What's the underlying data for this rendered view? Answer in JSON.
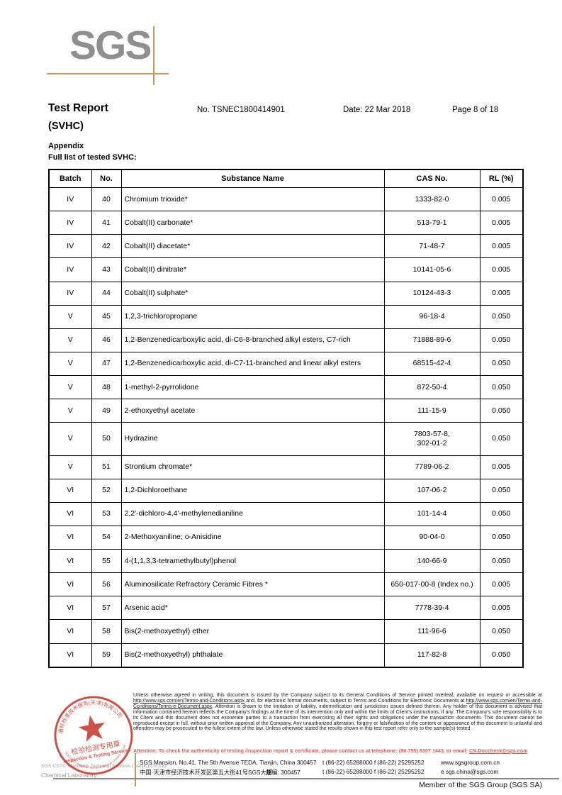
{
  "logo": {
    "text": "SGS"
  },
  "header": {
    "title": "Test Report",
    "subtitle": "(SVHC)",
    "report_no": "No. TSNEC1800414901",
    "date": "Date: 22 Mar 2018",
    "page": "Page 8 of 18",
    "appendix": "Appendix",
    "full_list": "Full list of tested SVHC:"
  },
  "table": {
    "headers": [
      "Batch",
      "No.",
      "Substance Name",
      "CAS No.",
      "RL (%)"
    ],
    "rows": [
      {
        "batch": "IV",
        "no": "40",
        "name": "Chromium trioxide*",
        "cas": "1333-82-0",
        "rl": "0.005"
      },
      {
        "batch": "IV",
        "no": "41",
        "name": "Cobalt(II) carbonate*",
        "cas": "513-79-1",
        "rl": "0.005"
      },
      {
        "batch": "IV",
        "no": "42",
        "name": "Cobalt(II) diacetate*",
        "cas": "71-48-7",
        "rl": "0.005"
      },
      {
        "batch": "IV",
        "no": "43",
        "name": "Cobalt(II) dinitrate*",
        "cas": "10141-05-6",
        "rl": "0.005"
      },
      {
        "batch": "IV",
        "no": "44",
        "name": "Cobalt(II) sulphate*",
        "cas": "10124-43-3",
        "rl": "0.005"
      },
      {
        "batch": "V",
        "no": "45",
        "name": "1,2,3-trichloropropane",
        "cas": "96-18-4",
        "rl": "0.050"
      },
      {
        "batch": "V",
        "no": "46",
        "name": "1,2-Benzenedicarboxylic acid, di-C6-8-branched alkyl esters, C7-rich",
        "cas": "71888-89-6",
        "rl": "0.050"
      },
      {
        "batch": "V",
        "no": "47",
        "name": "1,2-Benzenedicarboxylic acid, di-C7-11-branched and linear alkyl esters",
        "cas": "68515-42-4",
        "rl": "0.050"
      },
      {
        "batch": "V",
        "no": "48",
        "name": "1-methyl-2-pyrrolidone",
        "cas": "872-50-4",
        "rl": "0.050"
      },
      {
        "batch": "V",
        "no": "49",
        "name": "2-ethoxyethyl acetate",
        "cas": "111-15-9",
        "rl": "0.050"
      },
      {
        "batch": "V",
        "no": "50",
        "name": "Hydrazine",
        "cas": "7803-57-8,\n302-01-2",
        "rl": "0.050"
      },
      {
        "batch": "V",
        "no": "51",
        "name": "Strontium chromate*",
        "cas": "7789-06-2",
        "rl": "0.005"
      },
      {
        "batch": "VI",
        "no": "52",
        "name": "1,2-Dichloroethane",
        "cas": "107-06-2",
        "rl": "0.050"
      },
      {
        "batch": "VI",
        "no": "53",
        "name": "2,2'-dichloro-4,4'-methylenedianiline",
        "cas": "101-14-4",
        "rl": "0.050"
      },
      {
        "batch": "VI",
        "no": "54",
        "name": "2-Methoxyaniline; o-Anisidine",
        "cas": "90-04-0",
        "rl": "0.050"
      },
      {
        "batch": "VI",
        "no": "55",
        "name": "4-(1,1,3,3-tetramethylbutyl)phenol",
        "cas": "140-66-9",
        "rl": "0.050"
      },
      {
        "batch": "VI",
        "no": "56",
        "name": "Aluminosilicate Refractory Ceramic Fibres *",
        "cas": "650-017-00-8 (Index no.)",
        "rl": "0.005"
      },
      {
        "batch": "VI",
        "no": "57",
        "name": "Arsenic acid*",
        "cas": "7778-39-4",
        "rl": "0.005"
      },
      {
        "batch": "VI",
        "no": "58",
        "name": "Bis(2-methoxyethyl) ether",
        "cas": "111-96-6",
        "rl": "0.050"
      },
      {
        "batch": "VI",
        "no": "59",
        "name": "Bis(2-methoxyethyl) phthalate",
        "cas": "117-82-8",
        "rl": "0.050"
      }
    ]
  },
  "footer": {
    "disclaimer": {
      "p1": "Unless otherwise agreed in writing, this document is issued by the Company subject to its General Conditions of Service printed overleaf, available on request or accessible at ",
      "link1": "http://www.sgs.com/en/Terms-and-Conditions.aspx",
      "p2": " and, for electronic format documents, subject to Terms and Conditions for Electronic Documents at ",
      "link2": "http://www.sgs.com/en/Terms-and-Conditions/Terms-e-Document.aspx",
      "p3": ". Attention is drawn to the limitation of liability, indemnification and jurisdiction issues defined therein. Any holder of this document is advised that information contained hereon reflects the Company's findings at the time of its intervention only and within the limits of Client's instructions, if any. The Company's sole responsibility is to its Client and this document does not exonerate parties to a transaction from exercising all their rights and obligations under the transaction documents. This document cannot be reproduced except in full, without prior written approval of the Company. Any unauthorized alteration, forgery or falsification of the content or appearance of this document is unlawful and offenders may be prosecuted to the fullest extent of the law. Unless otherwise stated the results shown in this test report refer only to the sample(s) tested ."
    },
    "attention": {
      "p1": "Attention: To check the authenticity of testing /inspection report & certificate, please contact us at telephone: (86-755) 8307 1443, or email: ",
      "email": "CN.Doccheck@sgs.com"
    },
    "address": {
      "line1_en": "SGS Mansion, No.41, The 5th Avenue TEDA, Tianjin, China 300457",
      "line1_tel": "t (86-22) 65288000  f (86-22) 25295252",
      "line1_web": "www.sgsgroup.com.cn",
      "line2_cn": "中国·天津市经济技术开发区第五大街41号SGS大厦",
      "line2_postal": "邮编: 300457",
      "line2_tel": "t (86-22) 65288000  f (86-22) 25295252",
      "line2_email": "e  sgs.china@sgs.com"
    },
    "member": "Member of the SGS Group (SGS SA)"
  },
  "stamp": {
    "cn_arc": "通标标准技术服务(天津)有限公司",
    "cn_label": "检验检测专用章",
    "en_label": "Inspection & Testing Services",
    "en_arc": "SGS-CSTC Standards Technical Services (Tianjin) Co.,Ltd.",
    "color": "#c43a31"
  },
  "overlay": {
    "line1": "SGS-CSTC Standards Technical Services (Tianjin) Co.,Ltd.",
    "line2": "Chemical Laboratory."
  }
}
